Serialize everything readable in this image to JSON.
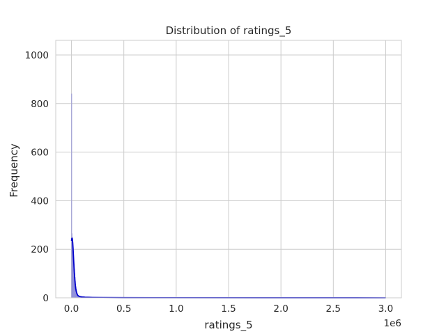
{
  "chart_data": {
    "type": "histogram",
    "title": "Distribution of ratings_5",
    "xlabel": "ratings_5",
    "ylabel": "Frequency",
    "x_offset_label": "1e6",
    "xlim": [
      -150000,
      3150000
    ],
    "ylim": [
      0,
      1060
    ],
    "x_ticks": [
      0,
      500000,
      1000000,
      1500000,
      2000000,
      2500000,
      3000000
    ],
    "x_tick_labels": [
      "0.0",
      "0.5",
      "1.0",
      "1.5",
      "2.0",
      "2.5",
      "3.0"
    ],
    "y_ticks": [
      0,
      200,
      400,
      600,
      800,
      1000
    ],
    "y_tick_labels": [
      "0",
      "200",
      "400",
      "600",
      "800",
      "1000"
    ],
    "grid": true,
    "colors": {
      "bars": "#7070e0",
      "kde": "#0000cc",
      "grid": "#cccccc",
      "spine": "#cccccc"
    },
    "bins": [
      {
        "x0": 0,
        "x1": 3000,
        "count": 840
      },
      {
        "x0": 3000,
        "x1": 6000,
        "count": 265
      },
      {
        "x0": 6000,
        "x1": 9000,
        "count": 250
      },
      {
        "x0": 9000,
        "x1": 12000,
        "count": 245
      },
      {
        "x0": 12000,
        "x1": 15000,
        "count": 232
      },
      {
        "x0": 15000,
        "x1": 18000,
        "count": 205
      },
      {
        "x0": 18000,
        "x1": 21000,
        "count": 185
      },
      {
        "x0": 21000,
        "x1": 24000,
        "count": 160
      },
      {
        "x0": 24000,
        "x1": 27000,
        "count": 140
      },
      {
        "x0": 27000,
        "x1": 30000,
        "count": 120
      },
      {
        "x0": 30000,
        "x1": 33000,
        "count": 100
      },
      {
        "x0": 33000,
        "x1": 36000,
        "count": 85
      },
      {
        "x0": 36000,
        "x1": 39000,
        "count": 70
      },
      {
        "x0": 39000,
        "x1": 42000,
        "count": 57
      },
      {
        "x0": 42000,
        "x1": 45000,
        "count": 46
      },
      {
        "x0": 45000,
        "x1": 48000,
        "count": 37
      },
      {
        "x0": 48000,
        "x1": 51000,
        "count": 30
      },
      {
        "x0": 51000,
        "x1": 54000,
        "count": 24
      },
      {
        "x0": 54000,
        "x1": 57000,
        "count": 19
      },
      {
        "x0": 57000,
        "x1": 60000,
        "count": 15
      },
      {
        "x0": 60000,
        "x1": 66000,
        "count": 12
      },
      {
        "x0": 66000,
        "x1": 72000,
        "count": 9
      },
      {
        "x0": 72000,
        "x1": 80000,
        "count": 7
      },
      {
        "x0": 80000,
        "x1": 90000,
        "count": 5
      },
      {
        "x0": 90000,
        "x1": 100000,
        "count": 4
      },
      {
        "x0": 100000,
        "x1": 115000,
        "count": 3
      },
      {
        "x0": 115000,
        "x1": 130000,
        "count": 2
      },
      {
        "x0": 130000,
        "x1": 150000,
        "count": 2
      },
      {
        "x0": 150000,
        "x1": 200000,
        "count": 1
      }
    ],
    "kde": {
      "x": [
        0,
        3000,
        6000,
        9000,
        12000,
        15000,
        18000,
        21000,
        24000,
        27000,
        30000,
        33000,
        36000,
        40000,
        45000,
        50000,
        55000,
        60000,
        70000,
        80000,
        100000,
        130000,
        160000,
        200000,
        300000,
        500000,
        1000000,
        2000000,
        3000000
      ],
      "y": [
        235,
        243,
        247,
        240,
        225,
        205,
        180,
        155,
        130,
        108,
        88,
        70,
        55,
        40,
        28,
        20,
        14,
        10,
        7,
        5,
        3.5,
        2.5,
        2,
        1.5,
        1,
        0.5,
        0.3,
        0.2,
        0.1
      ]
    }
  }
}
